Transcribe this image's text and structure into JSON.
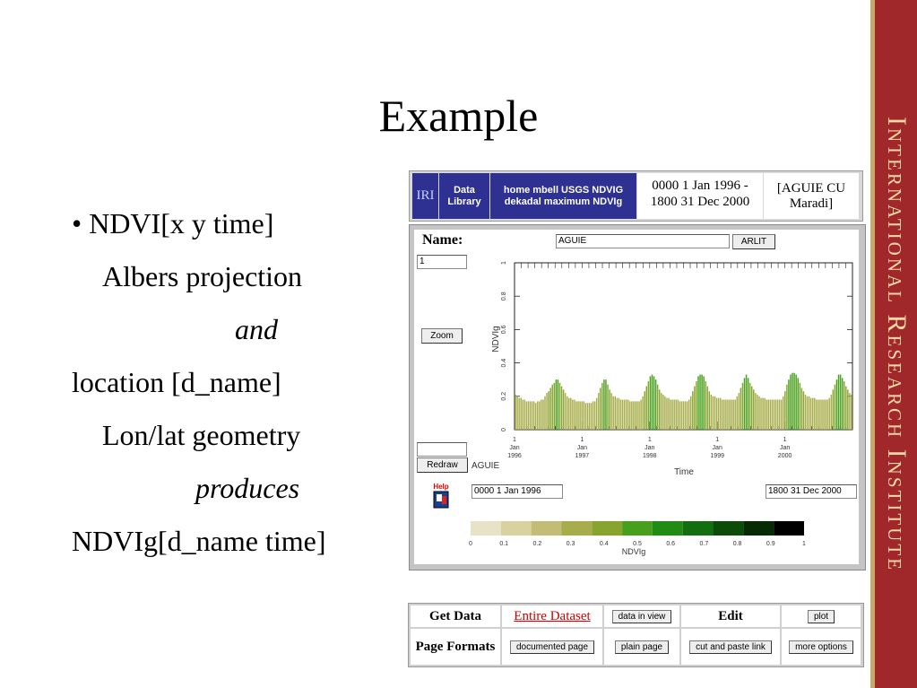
{
  "slide": {
    "title": "Example",
    "lines": [
      {
        "text": "• NDVI[x y time]",
        "style": "plain"
      },
      {
        "text": "Albers projection",
        "style": "indent"
      },
      {
        "text": "and",
        "style": "italic-center"
      },
      {
        "text": "location [d_name]",
        "style": "plain"
      },
      {
        "text": "Lon/lat geometry",
        "style": "indent"
      },
      {
        "text": "produces",
        "style": "italic-center"
      },
      {
        "text": "NDVIg[d_name time]",
        "style": "plain"
      }
    ],
    "sidebar_text": "International Research Institute"
  },
  "header": {
    "iri": "IRI",
    "data_library": "Data Library",
    "path": "home mbell USGS NDVIG dekadal maximum NDVIg",
    "time_range": "0000 1 Jan 1996 - 1800 31 Dec 2000",
    "location": "[AGUIE CU Maradi]"
  },
  "form": {
    "name_label": "Name:",
    "name_value": "AGUIE",
    "arlit_button": "ARLIT",
    "top_value": "1",
    "zoom_button": "Zoom",
    "bottom_value": "",
    "redraw_button": "Redraw",
    "location_label": "AGUIE",
    "help_label": "Help",
    "start_time": "0000 1 Jan 1996",
    "end_time": "1800 31 Dec 2000"
  },
  "chart_data": {
    "type": "bar",
    "xlabel": "Time",
    "ylabel": "NDVIg",
    "ylim": [
      0,
      1
    ],
    "y_ticks": [
      "0",
      "0.2",
      "0.4",
      "0.6",
      "0.8",
      "1"
    ],
    "x_ticks": [
      {
        "line1": "1",
        "line2": "Jan",
        "line3": "1996",
        "x": 1996.0
      },
      {
        "line1": "1",
        "line2": "Jan",
        "line3": "1997",
        "x": 1997.0
      },
      {
        "line1": "1",
        "line2": "Jan",
        "line3": "1998",
        "x": 1998.0
      },
      {
        "line1": "1",
        "line2": "Jan",
        "line3": "1999",
        "x": 1999.0
      },
      {
        "line1": "1",
        "line2": "Jan",
        "line3": "2000",
        "x": 2000.0
      }
    ],
    "xlim": [
      1996.0,
      2001.0
    ],
    "values": [
      0.21,
      0.2,
      0.19,
      0.19,
      0.18,
      0.18,
      0.17,
      0.17,
      0.17,
      0.17,
      0.17,
      0.16,
      0.17,
      0.17,
      0.18,
      0.18,
      0.2,
      0.22,
      0.23,
      0.25,
      0.27,
      0.28,
      0.3,
      0.3,
      0.28,
      0.26,
      0.24,
      0.22,
      0.2,
      0.19,
      0.19,
      0.18,
      0.18,
      0.17,
      0.17,
      0.17,
      0.17,
      0.17,
      0.16,
      0.16,
      0.16,
      0.16,
      0.17,
      0.17,
      0.19,
      0.22,
      0.25,
      0.28,
      0.3,
      0.3,
      0.27,
      0.24,
      0.22,
      0.2,
      0.2,
      0.19,
      0.19,
      0.18,
      0.18,
      0.18,
      0.18,
      0.18,
      0.17,
      0.17,
      0.17,
      0.17,
      0.17,
      0.17,
      0.18,
      0.2,
      0.23,
      0.26,
      0.29,
      0.32,
      0.33,
      0.32,
      0.3,
      0.27,
      0.24,
      0.22,
      0.21,
      0.2,
      0.19,
      0.19,
      0.18,
      0.18,
      0.18,
      0.18,
      0.18,
      0.17,
      0.17,
      0.17,
      0.17,
      0.17,
      0.18,
      0.2,
      0.23,
      0.26,
      0.29,
      0.32,
      0.33,
      0.33,
      0.32,
      0.29,
      0.26,
      0.23,
      0.21,
      0.2,
      0.2,
      0.19,
      0.19,
      0.19,
      0.18,
      0.18,
      0.18,
      0.18,
      0.18,
      0.18,
      0.18,
      0.18,
      0.2,
      0.22,
      0.25,
      0.28,
      0.31,
      0.33,
      0.31,
      0.28,
      0.26,
      0.24,
      0.22,
      0.21,
      0.2,
      0.19,
      0.19,
      0.19,
      0.18,
      0.18,
      0.18,
      0.18,
      0.18,
      0.18,
      0.18,
      0.18,
      0.18,
      0.2,
      0.23,
      0.27,
      0.3,
      0.33,
      0.34,
      0.34,
      0.33,
      0.31,
      0.28,
      0.25,
      0.23,
      0.21,
      0.2,
      0.2,
      0.19,
      0.19,
      0.19,
      0.18,
      0.18,
      0.18,
      0.18,
      0.18,
      0.18,
      0.18,
      0.19,
      0.21,
      0.24,
      0.27,
      0.3,
      0.33,
      0.33,
      0.31,
      0.29,
      0.26,
      0.24,
      0.22,
      0.21
    ]
  },
  "colorbar": {
    "label": "NDVIg",
    "ticks": [
      "0",
      "0.1",
      "0.2",
      "0.3",
      "0.4",
      "0.5",
      "0.6",
      "0.7",
      "0.8",
      "0.9",
      "1"
    ],
    "colors": [
      "#e8e3c8",
      "#d9d19f",
      "#c3bc74",
      "#a7ad4a",
      "#87a52d",
      "#47a01b",
      "#218c14",
      "#126e0e",
      "#0a4c08",
      "#052a04",
      "#000000"
    ]
  },
  "table": {
    "get_data": "Get Data",
    "entire_dataset": "Entire Dataset",
    "data_in_view": "data in view",
    "edit": "Edit",
    "plot": "plot",
    "page_formats": "Page Formats",
    "documented_page": "documented page",
    "plain_page": "plain page",
    "cut_and_paste_link": "cut and paste link",
    "more_options": "more options"
  }
}
